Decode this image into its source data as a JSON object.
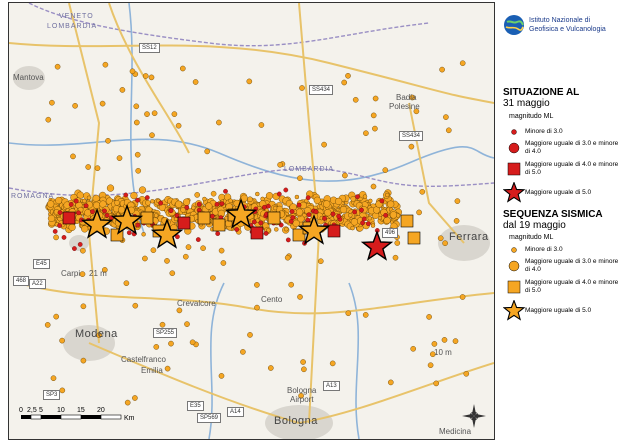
{
  "institute": {
    "name_line1": "Istituto Nazionale di",
    "name_line2": "Geofisica e Vulcanologia"
  },
  "legend_today": {
    "title_line1": "SITUAZIONE AL",
    "title_line2": "31 maggio",
    "subtitle": "magnitudo ML",
    "items": [
      {
        "label": "Minore di 3.0",
        "symbol": "small-circle",
        "color": "#d61c1c"
      },
      {
        "label": "Maggiore uguale di 3.0 e minore di 4.0",
        "symbol": "large-circle",
        "color": "#d61c1c"
      },
      {
        "label": "Maggiore uguale di 4.0 e minore di 5.0",
        "symbol": "square",
        "color": "#d61c1c"
      },
      {
        "label": "Maggiore uguale di 5.0",
        "symbol": "star",
        "color": "#d61c1c"
      }
    ]
  },
  "legend_sequence": {
    "title_line1": "SEQUENZA SISMICA",
    "title_line2": "dal 19 maggio",
    "subtitle": "magnitudo ML",
    "items": [
      {
        "label": "Minore di 3.0",
        "symbol": "small-circle",
        "color": "#f5a623"
      },
      {
        "label": "Maggiore uguale di 3.0 e minore di 4.0",
        "symbol": "large-circle",
        "color": "#f5a623"
      },
      {
        "label": "Maggiore uguale di 4.0 e minore di 5.0",
        "symbol": "square",
        "color": "#f5a623"
      },
      {
        "label": "Maggiore uguale di 5.0",
        "symbol": "star",
        "color": "#f5a623"
      }
    ]
  },
  "places": {
    "mantova": "Mantova",
    "modena": "Modena",
    "bologna": "Bologna",
    "ferrara": "Ferrara",
    "carpi": "Carpi",
    "carpi_height": "21 m",
    "castelfranco": "Castelfranco",
    "emilia": "Emilia",
    "bologna_airport_1": "Bologna",
    "bologna_airport_2": "Airport",
    "badia_1": "Badia",
    "badia_2": "Polesine",
    "medicina": "Medicina",
    "crevalcore": "Crevalcore",
    "cento": "Cento",
    "veneto": "VENETO",
    "lombardia_top": "LOMBARDIA",
    "lombardia_mid": "LOMBARDIA",
    "emilia_region": "ROMAGNA",
    "height_10m": "10 m"
  },
  "roads": [
    "SS12",
    "SS434",
    "SS434",
    "496",
    "E45",
    "A22",
    "468",
    "SP255",
    "SP3",
    "E35",
    "SP569",
    "A14",
    "A13"
  ],
  "scale": {
    "ticks": [
      "0",
      "2,5",
      "5",
      "10",
      "15",
      "20"
    ],
    "unit": "Km"
  },
  "map_colors": {
    "background": "#f4f2ec",
    "roads": "#e8c36a",
    "rivers": "#8fb4d9",
    "region_border": "#9a8fc4",
    "urban": "#d9d6cf",
    "today": "#d61c1c",
    "sequence": "#f5a623",
    "outline": "#000000"
  },
  "map_data": {
    "sequence_large_events": 12,
    "today_large_events": 1
  }
}
